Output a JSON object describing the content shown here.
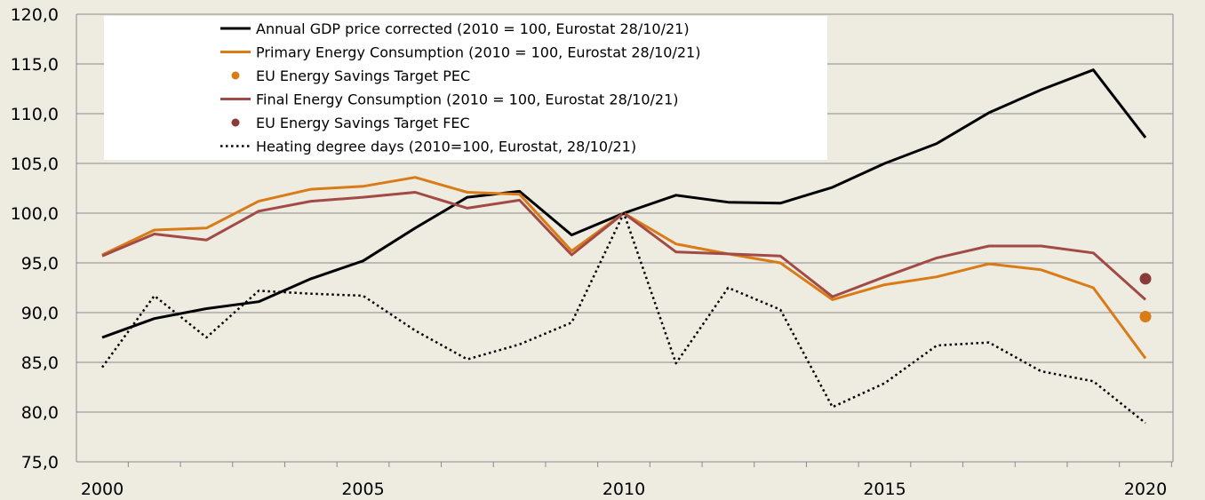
{
  "chart_data": {
    "type": "line",
    "title": "",
    "xlabel": "",
    "ylabel": "",
    "ylim": [
      75,
      120
    ],
    "xlim": [
      2000,
      2020
    ],
    "yticks": [
      "75,0",
      "80,0",
      "85,0",
      "90,0",
      "95,0",
      "100,0",
      "105,0",
      "110,0",
      "115,0",
      "120,0"
    ],
    "xticks": [
      "2000",
      "2005",
      "2010",
      "2015",
      "2020"
    ],
    "grid": "horizontal",
    "legend_position": "top-left",
    "series": [
      {
        "name": "Annual GDP price corrected (2010 = 100, Eurostat 28/10/21)",
        "kind": "line",
        "style": "solid",
        "color": "#000000",
        "x": [
          2000,
          2001,
          2002,
          2003,
          2004,
          2005,
          2006,
          2007,
          2008,
          2009,
          2010,
          2011,
          2012,
          2013,
          2014,
          2015,
          2016,
          2017,
          2018,
          2019,
          2020
        ],
        "values": [
          87.5,
          89.4,
          90.4,
          91.1,
          93.4,
          95.2,
          98.5,
          101.6,
          102.2,
          97.8,
          100.0,
          101.8,
          101.1,
          101.0,
          102.6,
          105.0,
          107.0,
          110.1,
          112.4,
          114.4,
          107.6
        ]
      },
      {
        "name": "Primary Energy Consumption (2010  = 100, Eurostat 28/10/21)",
        "kind": "line",
        "style": "solid",
        "color": "#d97b16",
        "x": [
          2000,
          2001,
          2002,
          2003,
          2004,
          2005,
          2006,
          2007,
          2008,
          2009,
          2010,
          2011,
          2012,
          2013,
          2014,
          2015,
          2016,
          2017,
          2018,
          2019,
          2020
        ],
        "values": [
          95.8,
          98.3,
          98.5,
          101.2,
          102.4,
          102.7,
          103.6,
          102.1,
          101.9,
          96.2,
          100.0,
          96.9,
          95.9,
          95.0,
          91.3,
          92.8,
          93.6,
          94.9,
          94.3,
          92.5,
          85.4
        ]
      },
      {
        "name": "EU Energy Savings Target PEC",
        "kind": "point",
        "style": "dot",
        "color": "#d97b16",
        "x": [
          2020
        ],
        "values": [
          89.6
        ]
      },
      {
        "name": "Final Energy Consumption (2010 = 100, Eurostat 28/10/21)",
        "kind": "line",
        "style": "solid",
        "color": "#a24a45",
        "x": [
          2000,
          2001,
          2002,
          2003,
          2004,
          2005,
          2006,
          2007,
          2008,
          2009,
          2010,
          2011,
          2012,
          2013,
          2014,
          2015,
          2016,
          2017,
          2018,
          2019,
          2020
        ],
        "values": [
          95.7,
          97.9,
          97.3,
          100.2,
          101.2,
          101.6,
          102.1,
          100.5,
          101.3,
          95.8,
          100.0,
          96.1,
          95.9,
          95.7,
          91.6,
          93.6,
          95.5,
          96.7,
          96.7,
          96.0,
          91.3
        ]
      },
      {
        "name": "EU Energy Savings Target FEC",
        "kind": "point",
        "style": "dot",
        "color": "#8b3a3a",
        "x": [
          2020
        ],
        "values": [
          93.4
        ]
      },
      {
        "name": "Heating degree days (2010=100, Eurostat, 28/10/21)",
        "kind": "line",
        "style": "dotted",
        "color": "#000000",
        "x": [
          2000,
          2001,
          2002,
          2003,
          2004,
          2005,
          2006,
          2007,
          2008,
          2009,
          2010,
          2011,
          2012,
          2013,
          2014,
          2015,
          2016,
          2017,
          2018,
          2019,
          2020
        ],
        "values": [
          84.5,
          91.7,
          87.5,
          92.2,
          91.9,
          91.7,
          88.2,
          85.3,
          86.8,
          89.0,
          100.0,
          84.9,
          92.5,
          90.3,
          80.5,
          82.9,
          86.7,
          87.0,
          84.1,
          83.1,
          78.9
        ]
      }
    ]
  }
}
